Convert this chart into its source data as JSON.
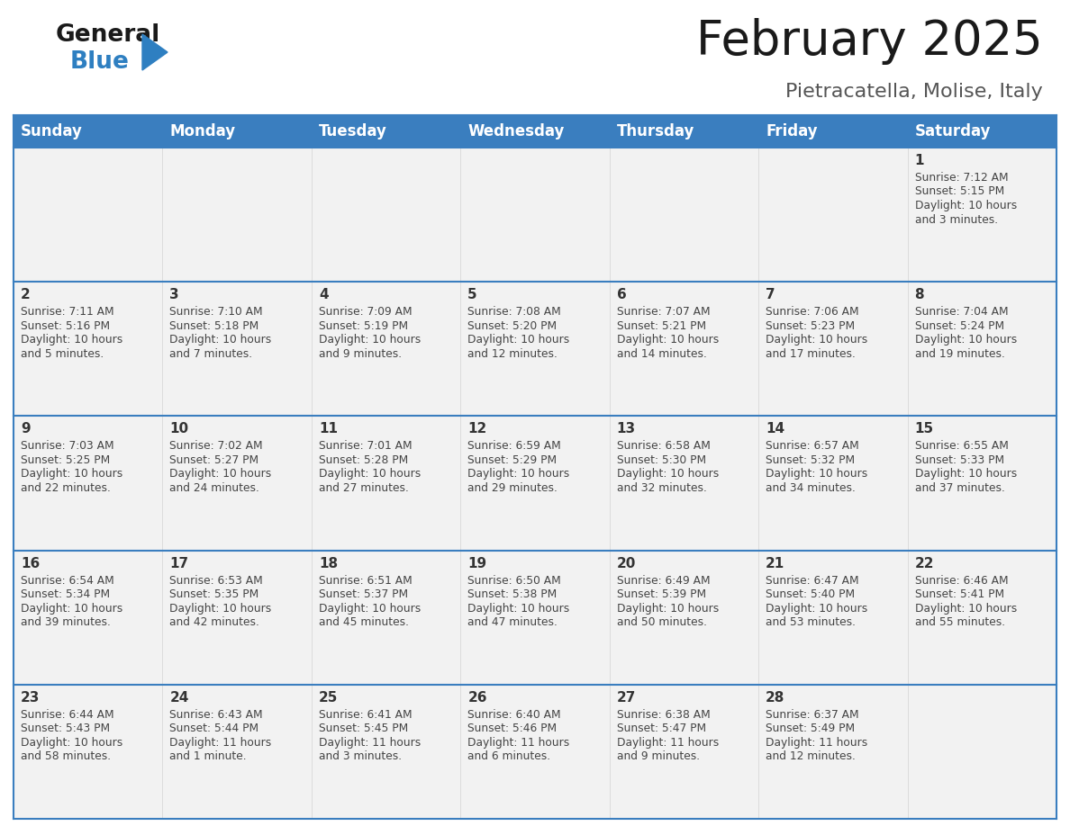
{
  "title": "February 2025",
  "subtitle": "Pietracatella, Molise, Italy",
  "header_color": "#3A7EBF",
  "header_text_color": "#FFFFFF",
  "cell_bg_color": "#F2F2F2",
  "day_number_color": "#333333",
  "info_text_color": "#444444",
  "border_color": "#3A7EBF",
  "days_of_week": [
    "Sunday",
    "Monday",
    "Tuesday",
    "Wednesday",
    "Thursday",
    "Friday",
    "Saturday"
  ],
  "calendar": [
    [
      null,
      null,
      null,
      null,
      null,
      null,
      {
        "day": 1,
        "sunrise": "7:12 AM",
        "sunset": "5:15 PM",
        "daylight": "10 hours and 3 minutes."
      }
    ],
    [
      {
        "day": 2,
        "sunrise": "7:11 AM",
        "sunset": "5:16 PM",
        "daylight": "10 hours and 5 minutes."
      },
      {
        "day": 3,
        "sunrise": "7:10 AM",
        "sunset": "5:18 PM",
        "daylight": "10 hours and 7 minutes."
      },
      {
        "day": 4,
        "sunrise": "7:09 AM",
        "sunset": "5:19 PM",
        "daylight": "10 hours and 9 minutes."
      },
      {
        "day": 5,
        "sunrise": "7:08 AM",
        "sunset": "5:20 PM",
        "daylight": "10 hours and 12 minutes."
      },
      {
        "day": 6,
        "sunrise": "7:07 AM",
        "sunset": "5:21 PM",
        "daylight": "10 hours and 14 minutes."
      },
      {
        "day": 7,
        "sunrise": "7:06 AM",
        "sunset": "5:23 PM",
        "daylight": "10 hours and 17 minutes."
      },
      {
        "day": 8,
        "sunrise": "7:04 AM",
        "sunset": "5:24 PM",
        "daylight": "10 hours and 19 minutes."
      }
    ],
    [
      {
        "day": 9,
        "sunrise": "7:03 AM",
        "sunset": "5:25 PM",
        "daylight": "10 hours and 22 minutes."
      },
      {
        "day": 10,
        "sunrise": "7:02 AM",
        "sunset": "5:27 PM",
        "daylight": "10 hours and 24 minutes."
      },
      {
        "day": 11,
        "sunrise": "7:01 AM",
        "sunset": "5:28 PM",
        "daylight": "10 hours and 27 minutes."
      },
      {
        "day": 12,
        "sunrise": "6:59 AM",
        "sunset": "5:29 PM",
        "daylight": "10 hours and 29 minutes."
      },
      {
        "day": 13,
        "sunrise": "6:58 AM",
        "sunset": "5:30 PM",
        "daylight": "10 hours and 32 minutes."
      },
      {
        "day": 14,
        "sunrise": "6:57 AM",
        "sunset": "5:32 PM",
        "daylight": "10 hours and 34 minutes."
      },
      {
        "day": 15,
        "sunrise": "6:55 AM",
        "sunset": "5:33 PM",
        "daylight": "10 hours and 37 minutes."
      }
    ],
    [
      {
        "day": 16,
        "sunrise": "6:54 AM",
        "sunset": "5:34 PM",
        "daylight": "10 hours and 39 minutes."
      },
      {
        "day": 17,
        "sunrise": "6:53 AM",
        "sunset": "5:35 PM",
        "daylight": "10 hours and 42 minutes."
      },
      {
        "day": 18,
        "sunrise": "6:51 AM",
        "sunset": "5:37 PM",
        "daylight": "10 hours and 45 minutes."
      },
      {
        "day": 19,
        "sunrise": "6:50 AM",
        "sunset": "5:38 PM",
        "daylight": "10 hours and 47 minutes."
      },
      {
        "day": 20,
        "sunrise": "6:49 AM",
        "sunset": "5:39 PM",
        "daylight": "10 hours and 50 minutes."
      },
      {
        "day": 21,
        "sunrise": "6:47 AM",
        "sunset": "5:40 PM",
        "daylight": "10 hours and 53 minutes."
      },
      {
        "day": 22,
        "sunrise": "6:46 AM",
        "sunset": "5:41 PM",
        "daylight": "10 hours and 55 minutes."
      }
    ],
    [
      {
        "day": 23,
        "sunrise": "6:44 AM",
        "sunset": "5:43 PM",
        "daylight": "10 hours and 58 minutes."
      },
      {
        "day": 24,
        "sunrise": "6:43 AM",
        "sunset": "5:44 PM",
        "daylight": "11 hours and 1 minute."
      },
      {
        "day": 25,
        "sunrise": "6:41 AM",
        "sunset": "5:45 PM",
        "daylight": "11 hours and 3 minutes."
      },
      {
        "day": 26,
        "sunrise": "6:40 AM",
        "sunset": "5:46 PM",
        "daylight": "11 hours and 6 minutes."
      },
      {
        "day": 27,
        "sunrise": "6:38 AM",
        "sunset": "5:47 PM",
        "daylight": "11 hours and 9 minutes."
      },
      {
        "day": 28,
        "sunrise": "6:37 AM",
        "sunset": "5:49 PM",
        "daylight": "11 hours and 12 minutes."
      },
      null
    ]
  ]
}
